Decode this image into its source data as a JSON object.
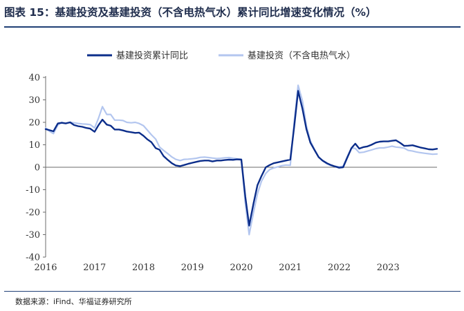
{
  "title": "图表 15：基建投资及基建投资（不含电热气水）累计同比增速变化情况（%）",
  "source": "数据来源：iFind、华福证券研究所",
  "chart_data": {
    "type": "line",
    "title": "图表 15：基建投资及基建投资（不含电热气水）累计同比增速变化情况（%）",
    "xlabel": "",
    "ylabel": "",
    "ylim": [
      -40,
      40
    ],
    "yticks": [
      40,
      30,
      20,
      10,
      0,
      -10,
      -20,
      -30,
      -40
    ],
    "xticks": [
      "2016",
      "2017",
      "2018",
      "2019",
      "2020",
      "2021",
      "2022",
      "2023"
    ],
    "xlim": [
      2016.0,
      2024.0
    ],
    "grid": false,
    "legend_position": "top",
    "series": [
      {
        "name": "基建投资累计同比",
        "color": "#0b2d8a",
        "points": [
          [
            2016.0,
            17.0
          ],
          [
            2016.08,
            16.5
          ],
          [
            2016.16,
            16.0
          ],
          [
            2016.25,
            19.5
          ],
          [
            2016.33,
            19.8
          ],
          [
            2016.41,
            19.5
          ],
          [
            2016.5,
            20.0
          ],
          [
            2016.58,
            18.8
          ],
          [
            2016.66,
            18.3
          ],
          [
            2016.75,
            18.0
          ],
          [
            2016.83,
            17.5
          ],
          [
            2016.91,
            17.2
          ],
          [
            2017.0,
            15.8
          ],
          [
            2017.08,
            18.7
          ],
          [
            2017.16,
            21.2
          ],
          [
            2017.25,
            19.0
          ],
          [
            2017.33,
            18.5
          ],
          [
            2017.41,
            16.8
          ],
          [
            2017.5,
            16.8
          ],
          [
            2017.58,
            16.4
          ],
          [
            2017.66,
            15.9
          ],
          [
            2017.75,
            15.6
          ],
          [
            2017.83,
            15.3
          ],
          [
            2017.91,
            15.4
          ],
          [
            2018.0,
            14.0
          ],
          [
            2018.08,
            12.4
          ],
          [
            2018.16,
            11.2
          ],
          [
            2018.25,
            8.5
          ],
          [
            2018.33,
            7.8
          ],
          [
            2018.41,
            5.0
          ],
          [
            2018.5,
            3.2
          ],
          [
            2018.58,
            1.8
          ],
          [
            2018.66,
            0.8
          ],
          [
            2018.75,
            0.5
          ],
          [
            2018.83,
            1.0
          ],
          [
            2018.91,
            1.5
          ],
          [
            2019.0,
            2.0
          ],
          [
            2019.08,
            2.4
          ],
          [
            2019.16,
            2.8
          ],
          [
            2019.25,
            3.0
          ],
          [
            2019.33,
            3.0
          ],
          [
            2019.41,
            2.6
          ],
          [
            2019.5,
            3.0
          ],
          [
            2019.58,
            3.0
          ],
          [
            2019.66,
            3.2
          ],
          [
            2019.75,
            3.4
          ],
          [
            2019.83,
            3.3
          ],
          [
            2019.91,
            3.5
          ],
          [
            2020.0,
            3.4
          ],
          [
            2020.08,
            -13.0
          ],
          [
            2020.16,
            -26.0
          ],
          [
            2020.25,
            -16.0
          ],
          [
            2020.33,
            -8.0
          ],
          [
            2020.41,
            -4.0
          ],
          [
            2020.5,
            0.0
          ],
          [
            2020.58,
            1.0
          ],
          [
            2020.66,
            1.8
          ],
          [
            2020.75,
            2.2
          ],
          [
            2020.83,
            2.6
          ],
          [
            2020.91,
            3.0
          ],
          [
            2021.0,
            3.4
          ],
          [
            2021.08,
            18.0
          ],
          [
            2021.16,
            34.0
          ],
          [
            2021.25,
            26.0
          ],
          [
            2021.33,
            17.0
          ],
          [
            2021.41,
            11.0
          ],
          [
            2021.5,
            7.5
          ],
          [
            2021.58,
            4.5
          ],
          [
            2021.66,
            3.0
          ],
          [
            2021.75,
            1.8
          ],
          [
            2021.83,
            1.0
          ],
          [
            2021.91,
            0.4
          ],
          [
            2022.0,
            -0.2
          ],
          [
            2022.08,
            0.0
          ],
          [
            2022.16,
            4.0
          ],
          [
            2022.25,
            8.5
          ],
          [
            2022.33,
            10.5
          ],
          [
            2022.41,
            8.3
          ],
          [
            2022.5,
            9.0
          ],
          [
            2022.58,
            9.3
          ],
          [
            2022.66,
            10.0
          ],
          [
            2022.75,
            11.0
          ],
          [
            2022.83,
            11.4
          ],
          [
            2022.91,
            11.5
          ],
          [
            2023.0,
            11.5
          ],
          [
            2023.08,
            11.8
          ],
          [
            2023.16,
            12.0
          ],
          [
            2023.25,
            10.8
          ],
          [
            2023.33,
            9.5
          ],
          [
            2023.41,
            9.6
          ],
          [
            2023.5,
            9.8
          ],
          [
            2023.58,
            9.3
          ],
          [
            2023.66,
            8.8
          ],
          [
            2023.75,
            8.4
          ],
          [
            2023.83,
            8.0
          ],
          [
            2023.91,
            7.9
          ],
          [
            2024.0,
            8.2
          ]
        ]
      },
      {
        "name": "基建投资（不含电热气水）",
        "color": "#b3c6ef",
        "points": [
          [
            2016.0,
            17.5
          ],
          [
            2016.08,
            16.0
          ],
          [
            2016.16,
            15.0
          ],
          [
            2016.25,
            18.8
          ],
          [
            2016.33,
            20.0
          ],
          [
            2016.41,
            19.5
          ],
          [
            2016.5,
            20.0
          ],
          [
            2016.58,
            19.8
          ],
          [
            2016.66,
            19.5
          ],
          [
            2016.75,
            19.3
          ],
          [
            2016.83,
            19.2
          ],
          [
            2016.91,
            19.0
          ],
          [
            2017.0,
            17.5
          ],
          [
            2017.08,
            21.8
          ],
          [
            2017.16,
            27.0
          ],
          [
            2017.25,
            23.5
          ],
          [
            2017.33,
            23.5
          ],
          [
            2017.41,
            21.0
          ],
          [
            2017.5,
            21.0
          ],
          [
            2017.58,
            20.8
          ],
          [
            2017.66,
            20.0
          ],
          [
            2017.75,
            19.8
          ],
          [
            2017.83,
            20.0
          ],
          [
            2017.91,
            19.5
          ],
          [
            2018.0,
            18.5
          ],
          [
            2018.08,
            16.5
          ],
          [
            2018.16,
            14.5
          ],
          [
            2018.25,
            12.5
          ],
          [
            2018.33,
            9.0
          ],
          [
            2018.41,
            7.5
          ],
          [
            2018.5,
            6.0
          ],
          [
            2018.58,
            4.6
          ],
          [
            2018.66,
            3.5
          ],
          [
            2018.75,
            3.0
          ],
          [
            2018.83,
            3.5
          ],
          [
            2018.91,
            3.6
          ],
          [
            2019.0,
            3.8
          ],
          [
            2019.08,
            4.0
          ],
          [
            2019.16,
            4.4
          ],
          [
            2019.25,
            4.5
          ],
          [
            2019.33,
            4.3
          ],
          [
            2019.41,
            4.1
          ],
          [
            2019.5,
            3.9
          ],
          [
            2019.58,
            4.0
          ],
          [
            2019.66,
            4.2
          ],
          [
            2019.75,
            4.3
          ],
          [
            2019.83,
            4.0
          ],
          [
            2019.91,
            3.8
          ],
          [
            2020.0,
            3.6
          ],
          [
            2020.08,
            -16.0
          ],
          [
            2020.16,
            -30.0
          ],
          [
            2020.25,
            -20.0
          ],
          [
            2020.33,
            -11.8
          ],
          [
            2020.41,
            -6.3
          ],
          [
            2020.5,
            -2.7
          ],
          [
            2020.58,
            -1.0
          ],
          [
            2020.66,
            -0.3
          ],
          [
            2020.75,
            0.2
          ],
          [
            2020.83,
            0.7
          ],
          [
            2020.91,
            1.0
          ],
          [
            2021.0,
            0.9
          ],
          [
            2021.08,
            20.0
          ],
          [
            2021.16,
            36.5
          ],
          [
            2021.25,
            29.5
          ],
          [
            2021.33,
            18.4
          ],
          [
            2021.41,
            11.8
          ],
          [
            2021.5,
            7.8
          ],
          [
            2021.58,
            4.6
          ],
          [
            2021.66,
            2.9
          ],
          [
            2021.75,
            1.5
          ],
          [
            2021.83,
            0.7
          ],
          [
            2021.91,
            0.4
          ],
          [
            2022.0,
            0.2
          ],
          [
            2022.08,
            0.5
          ],
          [
            2022.16,
            4.5
          ],
          [
            2022.25,
            8.5
          ],
          [
            2022.33,
            8.4
          ],
          [
            2022.41,
            6.5
          ],
          [
            2022.5,
            6.7
          ],
          [
            2022.58,
            7.2
          ],
          [
            2022.66,
            7.7
          ],
          [
            2022.75,
            8.3
          ],
          [
            2022.83,
            8.6
          ],
          [
            2022.91,
            8.6
          ],
          [
            2023.0,
            9.0
          ],
          [
            2023.08,
            9.4
          ],
          [
            2023.16,
            9.0
          ],
          [
            2023.25,
            8.8
          ],
          [
            2023.33,
            8.5
          ],
          [
            2023.41,
            7.5
          ],
          [
            2023.5,
            7.2
          ],
          [
            2023.58,
            6.8
          ],
          [
            2023.66,
            6.5
          ],
          [
            2023.75,
            6.2
          ],
          [
            2023.83,
            6.0
          ],
          [
            2023.91,
            5.8
          ],
          [
            2024.0,
            5.9
          ]
        ]
      }
    ]
  }
}
